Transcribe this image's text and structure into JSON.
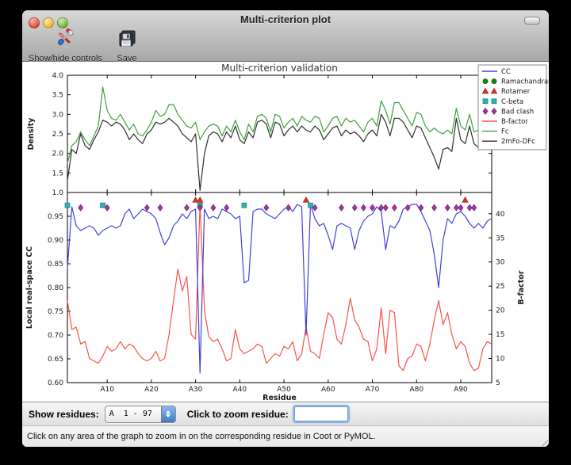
{
  "window": {
    "title": "Multi-criterion plot"
  },
  "toolbar": {
    "buttons": [
      {
        "label": "Show/hide controls",
        "icon": "tools-icon"
      },
      {
        "label": "Save",
        "icon": "floppy-disk-icon"
      }
    ]
  },
  "controls": {
    "show_residues_label": "Show residues:",
    "show_residues_value": "A  1 - 97",
    "zoom_label": "Click to zoom residue:",
    "zoom_input_value": ""
  },
  "status": {
    "message": "Click on any area of the graph to zoom in on the corresponding residue in Coot or PyMOL."
  },
  "chart_data": {
    "type": "line",
    "title": "Multi-criterion validation",
    "xlabel": "Residue",
    "xlim": [
      1,
      97
    ],
    "x_tick_values": [
      10,
      20,
      30,
      40,
      50,
      60,
      70,
      80,
      90
    ],
    "x_ticks": [
      "A10",
      "A20",
      "A30",
      "A40",
      "A50",
      "A60",
      "A70",
      "A80",
      "A90"
    ],
    "top": {
      "ylabel": "Density",
      "ylim": [
        1.0,
        4.0
      ],
      "yticks": [
        "1.0",
        "1.5",
        "2.0",
        "2.5",
        "3.0",
        "3.5",
        "4.0"
      ],
      "series": [
        {
          "name": "Fc",
          "color": "#3ba23b",
          "values": [
            1.75,
            2.2,
            2.3,
            2.55,
            2.35,
            2.2,
            2.45,
            2.7,
            3.7,
            3.1,
            2.9,
            2.85,
            3.0,
            2.8,
            2.6,
            2.75,
            2.5,
            2.45,
            2.6,
            2.8,
            3.1,
            2.95,
            3.0,
            3.25,
            3.25,
            3.0,
            2.85,
            2.7,
            2.65,
            2.8,
            2.35,
            2.55,
            2.7,
            2.75,
            2.7,
            2.45,
            2.7,
            2.55,
            2.85,
            2.55,
            2.35,
            2.75,
            2.55,
            2.95,
            3.0,
            2.9,
            2.55,
            3.0,
            2.95,
            2.65,
            2.8,
            2.9,
            2.7,
            2.95,
            2.85,
            2.8,
            2.95,
            2.9,
            2.55,
            2.7,
            2.9,
            2.95,
            2.7,
            2.9,
            2.8,
            2.85,
            2.7,
            2.55,
            2.8,
            2.9,
            2.7,
            3.35,
            3.1,
            2.75,
            3.3,
            3.3,
            3.1,
            2.9,
            2.7,
            3.05,
            3.0,
            2.7,
            2.55,
            2.65,
            2.55,
            2.5,
            2.6,
            2.5,
            3.15,
            2.7,
            2.6,
            3.0,
            2.55,
            2.6,
            2.5,
            3.5,
            2.45
          ]
        },
        {
          "name": "2mFo-DFc",
          "color": "#2f2f2f",
          "values": [
            1.3,
            2.1,
            2.0,
            2.5,
            2.2,
            2.1,
            2.35,
            2.55,
            2.85,
            2.8,
            2.7,
            2.8,
            2.75,
            2.6,
            2.35,
            2.5,
            2.35,
            2.25,
            2.5,
            2.6,
            2.8,
            2.75,
            2.8,
            2.9,
            2.8,
            2.7,
            2.5,
            2.4,
            2.3,
            2.5,
            1.05,
            2.0,
            2.45,
            2.55,
            2.5,
            2.3,
            2.55,
            2.4,
            2.7,
            2.35,
            2.25,
            2.55,
            2.4,
            2.8,
            2.85,
            2.75,
            2.4,
            2.8,
            2.75,
            2.45,
            2.6,
            2.7,
            2.55,
            2.7,
            2.6,
            2.55,
            2.7,
            2.6,
            2.35,
            2.5,
            2.65,
            2.7,
            2.45,
            2.6,
            2.5,
            2.55,
            2.45,
            2.3,
            2.5,
            2.6,
            2.45,
            3.0,
            2.8,
            2.45,
            2.9,
            2.9,
            2.8,
            2.6,
            2.4,
            2.7,
            2.65,
            2.4,
            2.15,
            1.9,
            1.6,
            2.1,
            2.15,
            2.05,
            2.9,
            2.35,
            2.25,
            2.7,
            2.25,
            2.15,
            2.1,
            3.3,
            2.15
          ]
        }
      ]
    },
    "bottom": {
      "ylabel_left": "Local real-space CC",
      "ylim_left": [
        0.6,
        1.0
      ],
      "yticks_left": [
        "0.60",
        "0.65",
        "0.70",
        "0.75",
        "0.80",
        "0.85",
        "0.90",
        "0.95"
      ],
      "ylabel_right": "B-factor",
      "ylim_right": [
        5,
        44.4
      ],
      "yticks_right": [
        "5",
        "10",
        "15",
        "20",
        "25",
        "30",
        "35",
        "40"
      ],
      "series": [
        {
          "name": "CC",
          "axis": "left",
          "color": "#4040dd",
          "values": [
            0.84,
            0.97,
            0.93,
            0.92,
            0.925,
            0.93,
            0.925,
            0.91,
            0.92,
            0.925,
            0.93,
            0.925,
            0.93,
            0.955,
            0.965,
            0.945,
            0.955,
            0.965,
            0.96,
            0.955,
            0.945,
            0.915,
            0.89,
            0.905,
            0.93,
            0.94,
            0.955,
            0.945,
            0.96,
            0.965,
            0.62,
            0.965,
            0.945,
            0.95,
            0.945,
            0.965,
            0.96,
            0.955,
            0.945,
            0.95,
            0.81,
            0.815,
            0.96,
            0.965,
            0.965,
            0.955,
            0.95,
            0.945,
            0.955,
            0.965,
            0.97,
            0.96,
            0.975,
            0.97,
            0.7,
            0.975,
            0.945,
            0.93,
            0.935,
            0.91,
            0.88,
            0.93,
            0.935,
            0.93,
            0.925,
            0.88,
            0.92,
            0.94,
            0.95,
            0.955,
            0.97,
            0.96,
            0.88,
            0.93,
            0.925,
            0.94,
            0.965,
            0.97,
            0.975,
            0.975,
            0.96,
            0.94,
            0.92,
            0.87,
            0.8,
            0.9,
            0.945,
            0.935,
            0.955,
            0.96,
            0.95,
            0.935,
            0.925,
            0.935,
            0.925,
            0.94,
            0.945
          ]
        },
        {
          "name": "B-factor",
          "axis": "right",
          "color": "#fb5248",
          "values": [
            22,
            16,
            16.5,
            13,
            13.5,
            10,
            9.5,
            9,
            10.5,
            12.5,
            11.5,
            12,
            13.5,
            12,
            13,
            12.5,
            11,
            10,
            9.5,
            10,
            11.5,
            9.5,
            10,
            15,
            22,
            28.5,
            24,
            27,
            15,
            14,
            42,
            20,
            14.5,
            13.5,
            14,
            12,
            9.5,
            10,
            16,
            12,
            11,
            11.5,
            12,
            13,
            12.5,
            9,
            10,
            11,
            10.5,
            12.5,
            12,
            13.5,
            9.5,
            11,
            16.5,
            11.5,
            11,
            10,
            15,
            19.5,
            18.5,
            14,
            13,
            17,
            22.5,
            18,
            16.5,
            14,
            13.5,
            9.5,
            12,
            20.5,
            11,
            20,
            19.5,
            8.5,
            7.5,
            10,
            10.5,
            13,
            12.5,
            9.5,
            13,
            18,
            22,
            17,
            19.5,
            15,
            12,
            13.5,
            12.5,
            9,
            7.5,
            8,
            12,
            13.5,
            13
          ]
        }
      ],
      "markers": [
        {
          "name": "Ramachandran",
          "shape": "circle",
          "color": "#0d8a0d",
          "edge": "#065206",
          "cc": 0.979,
          "residues": []
        },
        {
          "name": "Rotamer",
          "shape": "triangle",
          "color": "#e03128",
          "edge": "#8f1d16",
          "cc": 0.984,
          "residues": [
            30,
            31,
            55,
            91
          ]
        },
        {
          "name": "C-beta",
          "shape": "square",
          "color": "#29b5ad",
          "edge": "#157f7a",
          "cc": 0.973,
          "residues": [
            1,
            9,
            31,
            41,
            56
          ]
        },
        {
          "name": "Bad clash",
          "shape": "diamond",
          "color": "#a832a8",
          "edge": "#6e1c6e",
          "cc": 0.968,
          "residues": [
            4,
            10,
            19,
            22,
            28,
            31,
            34,
            37,
            46,
            51,
            57,
            63,
            66,
            68,
            70,
            72,
            73,
            75,
            78,
            81,
            84,
            87,
            89,
            90,
            92,
            93
          ]
        }
      ]
    },
    "legend": {
      "position": "upper right",
      "entries": [
        {
          "label": "CC",
          "swatch": "line",
          "color": "#4040dd"
        },
        {
          "label": "Ramachandran",
          "swatch": "circles",
          "color": "#0d8a0d",
          "edge": "#065206"
        },
        {
          "label": "Rotamer",
          "swatch": "triangles",
          "color": "#e03128",
          "edge": "#8f1d16"
        },
        {
          "label": "C-beta",
          "swatch": "squares",
          "color": "#29b5ad",
          "edge": "#157f7a"
        },
        {
          "label": "Bad clash",
          "swatch": "diamonds",
          "color": "#a832a8",
          "edge": "#6e1c6e"
        },
        {
          "label": "B-factor",
          "swatch": "line",
          "color": "#fb5248"
        },
        {
          "label": "Fc",
          "swatch": "line",
          "color": "#3ba23b"
        },
        {
          "label": "2mFo-DFc",
          "swatch": "line",
          "color": "#2f2f2f"
        }
      ]
    }
  }
}
